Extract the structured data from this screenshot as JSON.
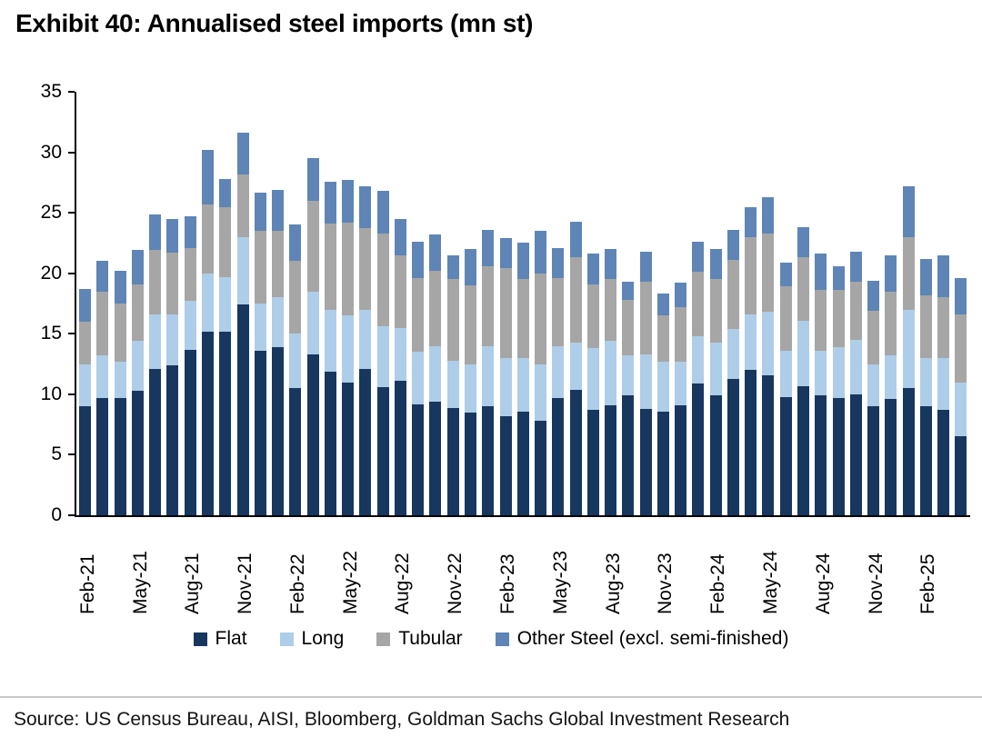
{
  "source": {
    "text": "Source: US Census Bureau, AISI, Bloomberg, Goldman Sachs Global Investment Research"
  },
  "chart_data": {
    "type": "bar",
    "stacked": true,
    "title": "Exhibit 40: Annualised steel imports (mn st)",
    "xlabel": "",
    "ylabel": "",
    "ylim": [
      0,
      35
    ],
    "y_ticks": [
      0,
      5,
      10,
      15,
      20,
      25,
      30,
      35
    ],
    "grid": false,
    "legend_position": "bottom",
    "x_tick_step": 3,
    "categories": [
      "Feb-21",
      "Mar-21",
      "Apr-21",
      "May-21",
      "Jun-21",
      "Jul-21",
      "Aug-21",
      "Sep-21",
      "Oct-21",
      "Nov-21",
      "Dec-21",
      "Jan-22",
      "Feb-22",
      "Mar-22",
      "Apr-22",
      "May-22",
      "Jun-22",
      "Jul-22",
      "Aug-22",
      "Sep-22",
      "Oct-22",
      "Nov-22",
      "Dec-22",
      "Jan-23",
      "Feb-23",
      "Mar-23",
      "Apr-23",
      "May-23",
      "Jun-23",
      "Jul-23",
      "Aug-23",
      "Sep-23",
      "Oct-23",
      "Nov-23",
      "Dec-23",
      "Jan-24",
      "Feb-24",
      "Mar-24",
      "Apr-24",
      "May-24",
      "Jun-24",
      "Jul-24",
      "Aug-24",
      "Sep-24",
      "Oct-24",
      "Nov-24",
      "Dec-24",
      "Jan-25",
      "Feb-25",
      "Mar-25",
      "Apr-25"
    ],
    "series": [
      {
        "name": "Flat",
        "key": "flat",
        "color": "#17375e",
        "values": [
          9.0,
          9.7,
          9.7,
          10.3,
          12.1,
          12.4,
          13.7,
          15.2,
          15.2,
          17.4,
          13.6,
          13.9,
          10.5,
          13.3,
          11.9,
          11.0,
          12.1,
          10.6,
          11.1,
          9.2,
          9.4,
          8.9,
          8.5,
          9.0,
          8.2,
          8.6,
          7.8,
          9.7,
          10.4,
          8.7,
          9.1,
          9.9,
          8.8,
          8.6,
          9.1,
          10.9,
          9.9,
          11.3,
          12.0,
          11.6,
          9.8,
          10.7,
          9.9,
          9.7,
          10.0,
          9.0,
          9.6,
          10.5,
          9.0,
          8.7,
          6.5
        ]
      },
      {
        "name": "Long",
        "key": "long",
        "color": "#aecde8",
        "values": [
          3.5,
          3.5,
          3.0,
          4.1,
          4.5,
          4.2,
          4.0,
          4.8,
          4.5,
          5.6,
          3.9,
          4.1,
          4.5,
          5.2,
          5.1,
          5.5,
          4.9,
          5.0,
          4.4,
          4.3,
          4.6,
          3.9,
          4.0,
          5.0,
          4.8,
          4.4,
          4.7,
          4.3,
          3.9,
          5.1,
          5.3,
          3.3,
          4.5,
          4.1,
          3.6,
          3.9,
          4.4,
          4.1,
          4.6,
          5.2,
          3.8,
          5.4,
          3.7,
          4.2,
          4.5,
          3.5,
          3.6,
          6.5,
          4.0,
          4.3,
          4.5
        ]
      },
      {
        "name": "Tubular",
        "key": "tubular",
        "color": "#a6a6a6",
        "values": [
          3.5,
          5.3,
          4.8,
          4.7,
          5.3,
          5.1,
          4.4,
          5.7,
          5.8,
          5.2,
          6.0,
          5.5,
          6.0,
          7.5,
          7.1,
          7.7,
          6.7,
          7.7,
          6.0,
          6.1,
          6.2,
          6.7,
          6.5,
          6.6,
          7.4,
          6.5,
          7.5,
          5.6,
          7.0,
          5.3,
          5.1,
          4.6,
          6.0,
          3.8,
          4.5,
          5.3,
          5.2,
          5.7,
          6.4,
          6.5,
          5.3,
          5.2,
          5.0,
          4.7,
          4.8,
          4.4,
          5.3,
          6.0,
          5.2,
          5.0,
          5.6
        ]
      },
      {
        "name": "Other Steel (excl. semi-finished)",
        "key": "other-steel",
        "color": "#5e85b5",
        "values": [
          2.7,
          2.5,
          2.7,
          2.8,
          3.0,
          2.8,
          2.6,
          4.5,
          2.3,
          3.4,
          3.2,
          3.4,
          3.0,
          3.5,
          3.5,
          3.5,
          3.5,
          3.5,
          3.0,
          3.0,
          3.0,
          2.0,
          3.0,
          3.0,
          2.5,
          3.0,
          3.5,
          2.5,
          3.0,
          2.5,
          2.5,
          1.5,
          2.5,
          1.8,
          2.0,
          2.5,
          2.5,
          2.5,
          2.5,
          3.0,
          2.0,
          2.5,
          3.0,
          2.0,
          2.5,
          2.5,
          3.0,
          4.2,
          3.0,
          3.5,
          3.0
        ]
      }
    ]
  }
}
